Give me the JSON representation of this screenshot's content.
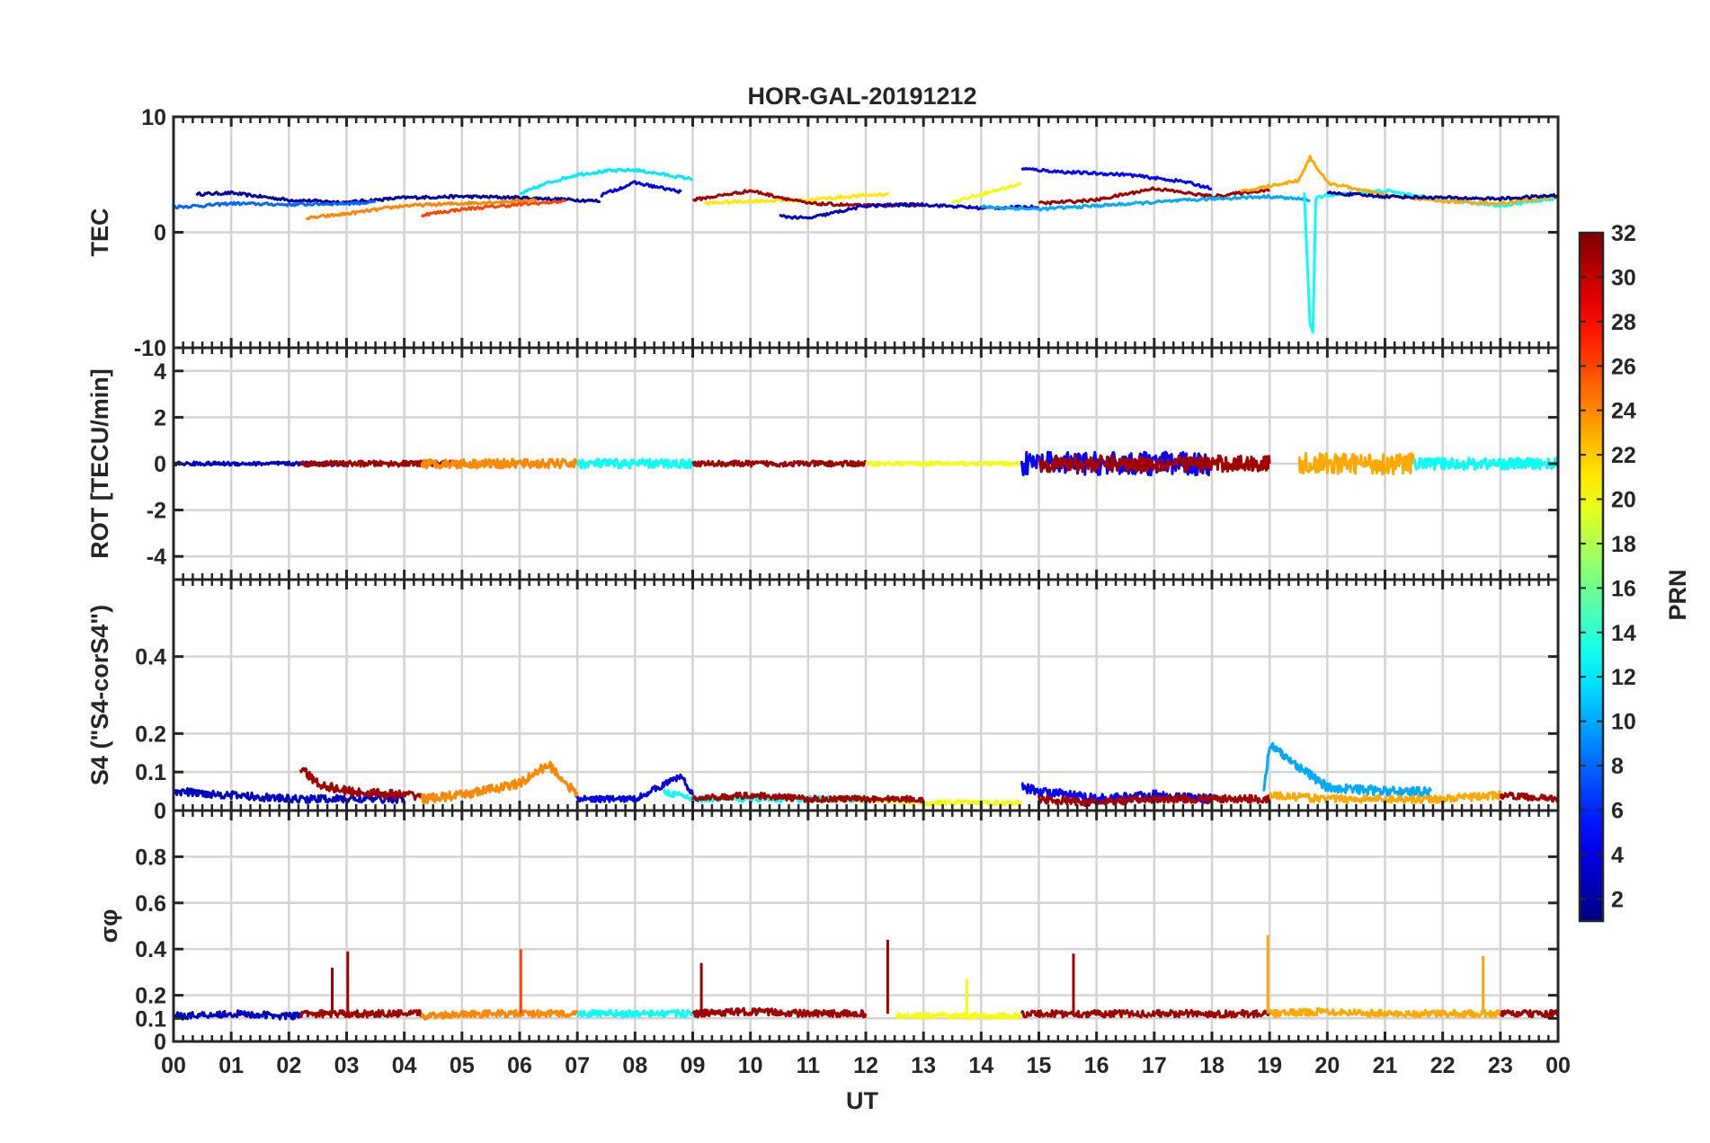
{
  "chart_data": {
    "type": "line",
    "title": "HOR-GAL-20191212",
    "xlabel": "UT",
    "x_ticks": [
      "00",
      "01",
      "02",
      "03",
      "04",
      "05",
      "06",
      "07",
      "08",
      "09",
      "10",
      "11",
      "12",
      "13",
      "14",
      "15",
      "16",
      "17",
      "18",
      "19",
      "20",
      "21",
      "22",
      "23",
      "00"
    ],
    "xlim": [
      0,
      24
    ],
    "grid": true,
    "colorbar": {
      "label": "PRN",
      "range": [
        1,
        32
      ],
      "ticks": [
        "2",
        "4",
        "6",
        "8",
        "10",
        "12",
        "14",
        "16",
        "18",
        "20",
        "22",
        "24",
        "26",
        "28",
        "30",
        "32"
      ],
      "colormap": "jet"
    },
    "panels": [
      {
        "ylabel": "TEC",
        "ylim": [
          -10,
          10
        ],
        "yticks": [
          "10",
          "0",
          "-10"
        ],
        "series": [
          {
            "prn": 2,
            "x": [
              0.4,
              1.0,
              2.0,
              3.0,
              4.0,
              5.0,
              6.0,
              7.0,
              7.4
            ],
            "values": [
              3.3,
              3.4,
              2.8,
              2.6,
              3.0,
              3.1,
              3.0,
              2.8,
              2.7
            ]
          },
          {
            "prn": 8,
            "x": [
              0.0,
              0.5,
              1.0,
              2.0,
              3.0,
              3.5
            ],
            "values": [
              2.2,
              2.3,
              2.5,
              2.4,
              2.5,
              2.6
            ]
          },
          {
            "prn": 12,
            "x": [
              6.0,
              6.5,
              7.0,
              7.5,
              8.0,
              8.5,
              9.0
            ],
            "values": [
              3.3,
              4.3,
              5.0,
              5.3,
              5.4,
              5.0,
              4.6
            ]
          },
          {
            "prn": 24,
            "x": [
              2.3,
              3.0,
              4.0,
              5.0,
              6.0,
              6.3
            ],
            "values": [
              1.2,
              1.6,
              2.3,
              2.5,
              2.7,
              2.8
            ]
          },
          {
            "prn": 26,
            "x": [
              4.3,
              5.0,
              6.0,
              6.8
            ],
            "values": [
              1.5,
              2.0,
              2.4,
              2.7
            ]
          },
          {
            "prn": 21,
            "x": [
              9.2,
              10.0,
              11.0,
              12.0,
              12.4
            ],
            "values": [
              2.5,
              2.7,
              2.8,
              3.2,
              3.3
            ]
          },
          {
            "prn": 31,
            "x": [
              9.0,
              10.0,
              11.0,
              12.0,
              13.0
            ],
            "values": [
              2.8,
              3.6,
              2.5,
              2.3,
              2.4
            ]
          },
          {
            "prn": 4,
            "x": [
              7.4,
              8.0,
              8.8
            ],
            "values": [
              3.2,
              4.3,
              3.5
            ]
          },
          {
            "prn": 3,
            "x": [
              10.5,
              11.0,
              12.0,
              13.0,
              14.0,
              15.0
            ],
            "values": [
              1.4,
              1.2,
              2.3,
              2.4,
              2.1,
              2.2
            ]
          },
          {
            "prn": 20,
            "x": [
              13.5,
              14.0,
              14.7
            ],
            "values": [
              2.6,
              3.3,
              4.2
            ]
          },
          {
            "prn": 5,
            "x": [
              14.7,
              15.5,
              16.5,
              17.5,
              18.0
            ],
            "values": [
              5.5,
              5.2,
              5.0,
              4.4,
              3.8
            ]
          },
          {
            "prn": 31,
            "x": [
              15.0,
              16.0,
              17.0,
              18.0,
              19.0
            ],
            "values": [
              2.5,
              2.8,
              3.8,
              3.1,
              3.7
            ]
          },
          {
            "prn": 10,
            "x": [
              14.0,
              15.0,
              16.0,
              17.0,
              18.0,
              19.0,
              19.7
            ],
            "values": [
              2.2,
              2.0,
              2.3,
              2.6,
              2.9,
              3.1,
              2.8
            ]
          },
          {
            "prn": 13,
            "x": [
              19.6,
              19.7,
              19.75,
              19.8,
              20.0,
              21.0,
              22.0,
              23.0,
              24.0
            ],
            "values": [
              3.5,
              -8.0,
              -8.6,
              2.9,
              3.2,
              3.6,
              2.8,
              2.3,
              3.0
            ]
          },
          {
            "prn": 23,
            "x": [
              18.5,
              19.0,
              19.5,
              19.7,
              20.0,
              21.0,
              22.0,
              23.0,
              24.0
            ],
            "values": [
              3.5,
              4.0,
              4.5,
              6.5,
              4.3,
              3.2,
              2.7,
              2.5,
              3.1
            ]
          },
          {
            "prn": 2,
            "x": [
              20.0,
              21.0,
              22.0,
              23.0,
              24.0
            ],
            "values": [
              3.4,
              3.1,
              3.0,
              2.9,
              3.2
            ]
          }
        ]
      },
      {
        "ylabel": "ROT [TECU/min]",
        "ylim": [
          -5,
          5
        ],
        "yticks": [
          "4",
          "2",
          "0",
          "-2",
          "-4"
        ],
        "series": [
          {
            "prn": 3,
            "x": [
              0,
              3
            ],
            "values": [
              0,
              0
            ],
            "noise": 0.08
          },
          {
            "prn": 31,
            "x": [
              2.2,
              5
            ],
            "values": [
              0,
              0
            ],
            "noise": 0.12
          },
          {
            "prn": 24,
            "x": [
              4.3,
              7
            ],
            "values": [
              0,
              0
            ],
            "noise": 0.2
          },
          {
            "prn": 13,
            "x": [
              7,
              9
            ],
            "values": [
              0,
              0
            ],
            "noise": 0.2
          },
          {
            "prn": 31,
            "x": [
              9,
              12
            ],
            "values": [
              0,
              0
            ],
            "noise": 0.12
          },
          {
            "prn": 20,
            "x": [
              12,
              14.7
            ],
            "values": [
              0,
              0
            ],
            "noise": 0.08
          },
          {
            "prn": 5,
            "x": [
              14.7,
              18
            ],
            "values": [
              0,
              0
            ],
            "noise": 0.5
          },
          {
            "prn": 31,
            "x": [
              15,
              19
            ],
            "values": [
              0,
              0
            ],
            "noise": 0.35
          },
          {
            "prn": 23,
            "x": [
              19.5,
              21.5
            ],
            "values": [
              0,
              0
            ],
            "noise": 0.45
          },
          {
            "prn": 13,
            "x": [
              21.5,
              24
            ],
            "values": [
              0,
              0
            ],
            "noise": 0.25
          }
        ]
      },
      {
        "ylabel": "S4 (\"S4-corS4\")",
        "ylim": [
          0,
          0.6
        ],
        "yticks": [
          "0.4",
          "0.2",
          "0.1",
          "0"
        ],
        "series": [
          {
            "prn": 3,
            "x": [
              0,
              1.0,
              2.0,
              3.0,
              4.0
            ],
            "values": [
              0.05,
              0.04,
              0.03,
              0.03,
              0.03
            ],
            "noise": 0.01
          },
          {
            "prn": 31,
            "x": [
              2.2,
              2.5,
              3.0,
              4.0,
              4.3
            ],
            "values": [
              0.11,
              0.07,
              0.05,
              0.04,
              0.04
            ],
            "noise": 0.012
          },
          {
            "prn": 24,
            "x": [
              4.3,
              5.0,
              6.0,
              6.5,
              7.0
            ],
            "values": [
              0.03,
              0.04,
              0.07,
              0.12,
              0.04
            ],
            "noise": 0.012
          },
          {
            "prn": 4,
            "x": [
              7.0,
              8.0,
              8.8,
              9.0
            ],
            "values": [
              0.03,
              0.03,
              0.09,
              0.04
            ],
            "noise": 0.008
          },
          {
            "prn": 13,
            "x": [
              8.5,
              9.0,
              10.0,
              11.0,
              12.0
            ],
            "values": [
              0.05,
              0.03,
              0.03,
              0.03,
              0.03
            ],
            "noise": 0.008
          },
          {
            "prn": 20,
            "x": [
              11.5,
              12.0,
              13.0,
              14.0,
              14.7
            ],
            "values": [
              0.03,
              0.03,
              0.02,
              0.02,
              0.02
            ],
            "noise": 0.006
          },
          {
            "prn": 31,
            "x": [
              9.0,
              10.0,
              11.0,
              12.0,
              13.0
            ],
            "values": [
              0.03,
              0.04,
              0.03,
              0.03,
              0.03
            ],
            "noise": 0.008
          },
          {
            "prn": 5,
            "x": [
              14.7,
              15.0,
              16.0,
              17.0,
              18.0
            ],
            "values": [
              0.06,
              0.05,
              0.03,
              0.04,
              0.03
            ],
            "noise": 0.012
          },
          {
            "prn": 31,
            "x": [
              15.0,
              16.0,
              17.0,
              18.0,
              19.0
            ],
            "values": [
              0.03,
              0.02,
              0.03,
              0.03,
              0.03
            ],
            "noise": 0.01
          },
          {
            "prn": 10,
            "x": [
              18.9,
              19.0,
              20.0,
              21.0,
              21.8
            ],
            "values": [
              0.05,
              0.17,
              0.06,
              0.05,
              0.05
            ],
            "noise": 0.012
          },
          {
            "prn": 23,
            "x": [
              19.0,
              20.0,
              21.0,
              22.0,
              23.0
            ],
            "values": [
              0.04,
              0.03,
              0.03,
              0.03,
              0.04
            ],
            "noise": 0.01
          },
          {
            "prn": 31,
            "x": [
              23.0,
              24.0
            ],
            "values": [
              0.04,
              0.03
            ],
            "noise": 0.008
          }
        ]
      },
      {
        "ylabel": "σφ",
        "ylim": [
          0,
          1
        ],
        "yticks": [
          "0.8",
          "0.6",
          "0.4",
          "0.2",
          "0.1",
          "0"
        ],
        "series": [
          {
            "prn": 3,
            "x": [
              0,
              1.0,
              2.0,
              2.2
            ],
            "values": [
              0.11,
              0.12,
              0.11,
              0.11
            ],
            "noise": 0.015
          },
          {
            "prn": 31,
            "x": [
              2.2,
              3.0,
              4.0,
              4.3
            ],
            "values": [
              0.12,
              0.12,
              0.12,
              0.12
            ],
            "noise": 0.015
          },
          {
            "prn": 24,
            "x": [
              4.3,
              5.0,
              6.0,
              7.0
            ],
            "values": [
              0.11,
              0.12,
              0.12,
              0.12
            ],
            "noise": 0.015
          },
          {
            "prn": 13,
            "x": [
              7.0,
              8.0,
              9.0
            ],
            "values": [
              0.12,
              0.12,
              0.12
            ],
            "noise": 0.015
          },
          {
            "prn": 31,
            "x": [
              9.0,
              10.0,
              11.0,
              12.0
            ],
            "values": [
              0.12,
              0.13,
              0.12,
              0.12
            ],
            "noise": 0.015
          },
          {
            "prn": 20,
            "x": [
              12.5,
              13.0,
              14.0,
              14.7
            ],
            "values": [
              0.11,
              0.11,
              0.11,
              0.11
            ],
            "noise": 0.012
          },
          {
            "prn": 31,
            "x": [
              14.7,
              15.0,
              16.0,
              17.0,
              18.0,
              19.0
            ],
            "values": [
              0.12,
              0.12,
              0.12,
              0.12,
              0.12,
              0.12
            ],
            "noise": 0.015
          },
          {
            "prn": 23,
            "x": [
              19.0,
              20.0,
              21.0,
              22.0,
              23.0
            ],
            "values": [
              0.12,
              0.13,
              0.12,
              0.12,
              0.12
            ],
            "noise": 0.015
          },
          {
            "prn": 31,
            "x": [
              23.0,
              24.0
            ],
            "values": [
              0.12,
              0.12
            ],
            "noise": 0.015
          },
          {
            "prn": 31,
            "x": [
              2.75,
              2.75
            ],
            "values": [
              0.12,
              0.32
            ]
          },
          {
            "prn": 31,
            "x": [
              3.02,
              3.02
            ],
            "values": [
              0.12,
              0.39
            ]
          },
          {
            "prn": 26,
            "x": [
              6.02,
              6.02
            ],
            "values": [
              0.12,
              0.4
            ]
          },
          {
            "prn": 31,
            "x": [
              9.15,
              9.15
            ],
            "values": [
              0.12,
              0.34
            ]
          },
          {
            "prn": 31,
            "x": [
              12.38,
              12.38
            ],
            "values": [
              0.12,
              0.44
            ]
          },
          {
            "prn": 20,
            "x": [
              13.75,
              13.75
            ],
            "values": [
              0.11,
              0.27
            ]
          },
          {
            "prn": 31,
            "x": [
              15.6,
              15.6
            ],
            "values": [
              0.12,
              0.38
            ]
          },
          {
            "prn": 23,
            "x": [
              18.97,
              18.97
            ],
            "values": [
              0.12,
              0.46
            ]
          },
          {
            "prn": 23,
            "x": [
              22.7,
              22.7
            ],
            "values": [
              0.12,
              0.37
            ]
          }
        ]
      }
    ]
  }
}
